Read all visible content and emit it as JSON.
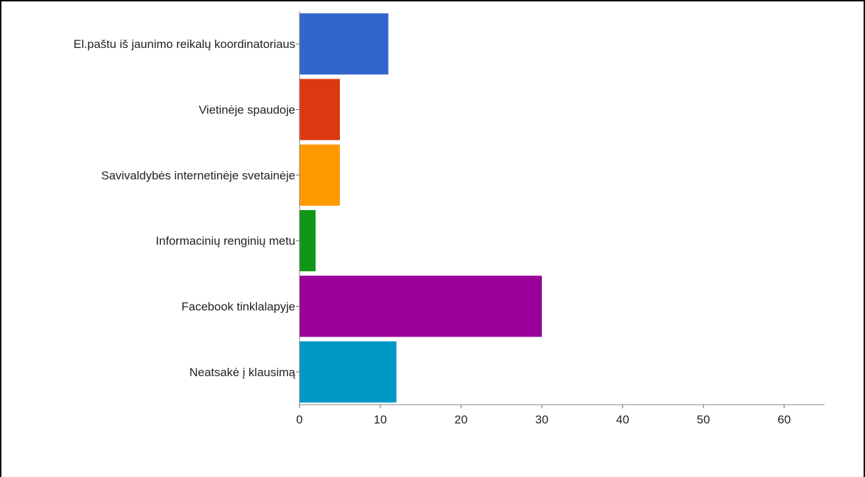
{
  "chart_data": {
    "type": "bar",
    "orientation": "horizontal",
    "categories": [
      "El.paštu iš jaunimo reikalų koordinatoriaus",
      "Vietinėje spaudoje",
      "Savivaldybės internetinėje svetainėje",
      "Informacinių renginių metu",
      "Facebook tinklalapyje",
      "Neatsakė į klausimą"
    ],
    "values": [
      11,
      5,
      5,
      2,
      30,
      12
    ],
    "colors": [
      "#3366cc",
      "#dc3912",
      "#ff9900",
      "#109618",
      "#990099",
      "#0099c6"
    ],
    "xlim": [
      0,
      65
    ],
    "xticks": [
      0,
      10,
      20,
      30,
      40,
      50,
      60
    ],
    "title": "",
    "xlabel": "",
    "ylabel": "",
    "grid": false,
    "legend": "none"
  }
}
